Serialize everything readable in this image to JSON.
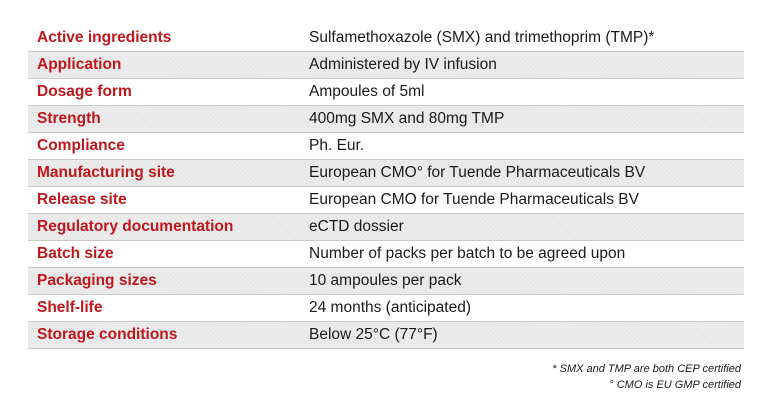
{
  "table": {
    "rows": [
      {
        "label": "Active ingredients",
        "value": "Sulfamethoxazole (SMX) and trimethoprim (TMP)*"
      },
      {
        "label": "Application",
        "value": "Administered by IV infusion"
      },
      {
        "label": "Dosage form",
        "value": "Ampoules of 5ml"
      },
      {
        "label": "Strength",
        "value": "400mg SMX and 80mg TMP"
      },
      {
        "label": "Compliance",
        "value": "Ph. Eur."
      },
      {
        "label": "Manufacturing site",
        "value": "European CMO° for Tuende Pharmaceuticals BV"
      },
      {
        "label": "Release site",
        "value": "European CMO for Tuende Pharmaceuticals BV"
      },
      {
        "label": "Regulatory documentation",
        "value": "eCTD dossier"
      },
      {
        "label": "Batch size",
        "value": "Number of packs per batch to be agreed upon"
      },
      {
        "label": "Packaging sizes",
        "value": "10 ampoules per pack"
      },
      {
        "label": "Shelf-life",
        "value": "24 months (anticipated)"
      },
      {
        "label": "Storage conditions",
        "value": "Below 25°C (77°F)"
      }
    ]
  },
  "footnotes": {
    "line1": "* SMX and TMP are both CEP certified",
    "line2": "° CMO is EU GMP certified"
  },
  "colors": {
    "label": "#c0171c",
    "value": "#1a1a1a",
    "shaded_row": "#ececec",
    "divider": "#c9c9c9"
  }
}
